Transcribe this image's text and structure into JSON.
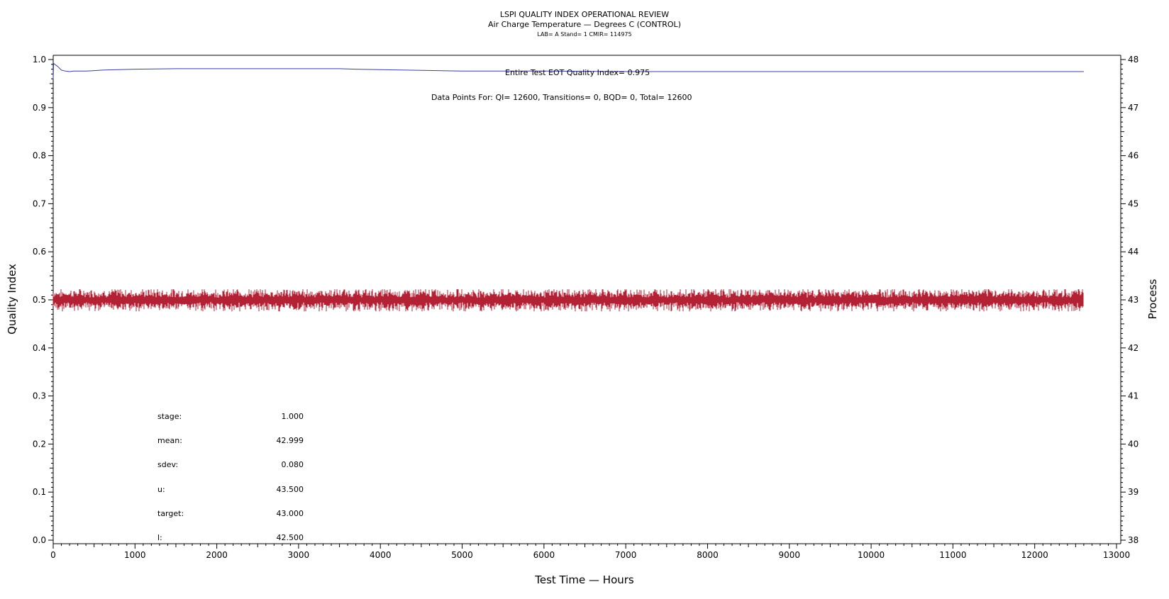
{
  "header": {
    "title": "LSPI QUALITY INDEX OPERATIONAL REVIEW",
    "subtitle": "Air Charge Temperature — Degrees C (CONTROL)",
    "info": "LAB= A Stand= 1 CMIR= 114975"
  },
  "annotations": {
    "eot": "Entire Test EOT Quality Index=   0.975",
    "points": "Data Points For: QI= 12600, Transitions=     0, BQD=     0, Total= 12600"
  },
  "stats": [
    {
      "label": "stage:",
      "value": "1.000"
    },
    {
      "label": "mean:",
      "value": "42.999"
    },
    {
      "label": "sdev:",
      "value": "0.080"
    },
    {
      "label": "u:",
      "value": "43.500"
    },
    {
      "label": "target:",
      "value": "43.000"
    },
    {
      "label": "l:",
      "value": "42.500"
    }
  ],
  "chart_data": {
    "type": "line",
    "xlabel": "Test Time — Hours",
    "ylabel": "Quality Index",
    "y2label": "Process",
    "xlim": [
      0,
      13000
    ],
    "ylim": [
      0,
      1.0
    ],
    "y2lim": [
      38,
      48
    ],
    "xticks": [
      "0",
      "1000",
      "2000",
      "3000",
      "4000",
      "5000",
      "6000",
      "7000",
      "8000",
      "9000",
      "10000",
      "11000",
      "12000",
      "13000"
    ],
    "yticks": [
      "0.0",
      "0.1",
      "0.2",
      "0.3",
      "0.4",
      "0.5",
      "0.6",
      "0.7",
      "0.8",
      "0.9",
      "1.0"
    ],
    "y2ticks": [
      "38",
      "39",
      "40",
      "41",
      "42",
      "43",
      "44",
      "45",
      "46",
      "47",
      "48"
    ],
    "series": [
      {
        "axis": "left",
        "color": "#3a3fa8",
        "x": [
          0,
          5,
          20,
          60,
          100,
          150,
          200,
          250,
          300,
          400,
          600,
          800,
          1000,
          1500,
          2000,
          2500,
          3000,
          3500,
          3700,
          4000,
          4700,
          5000,
          6000,
          7000,
          8000,
          9000,
          10000,
          11000,
          12000,
          12600
        ],
        "y": [
          0.96,
          0.992,
          0.99,
          0.985,
          0.978,
          0.976,
          0.975,
          0.976,
          0.976,
          0.976,
          0.978,
          0.979,
          0.98,
          0.981,
          0.981,
          0.981,
          0.981,
          0.981,
          0.98,
          0.979,
          0.977,
          0.976,
          0.976,
          0.975,
          0.975,
          0.975,
          0.975,
          0.975,
          0.975,
          0.975
        ]
      },
      {
        "axis": "right",
        "color": "#b22234",
        "x_range": [
          0,
          12600
        ],
        "mean": 42.999,
        "sdev": 0.08,
        "band": [
          42.76,
          43.22
        ]
      }
    ]
  }
}
